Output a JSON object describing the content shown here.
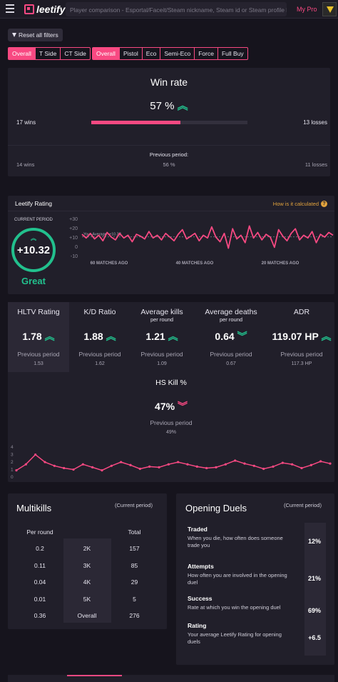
{
  "topbar": {
    "logo_text": "leetify",
    "search_placeholder": "Player comparison - Esportal/Faceit/Steam nickname, Steam id or Steam profile link",
    "my_pro": "My Pro"
  },
  "filters": {
    "reset_label": "Reset all filters",
    "side_tabs": [
      "Overall",
      "T Side",
      "CT Side"
    ],
    "round_tabs": [
      "Overall",
      "Pistol",
      "Eco",
      "Semi-Eco",
      "Force",
      "Full Buy"
    ],
    "side_selected": "Overall",
    "round_selected": "Overall"
  },
  "winrate": {
    "title": "Win rate",
    "value": "57 %",
    "wins": "17 wins",
    "losses": "13 losses",
    "fill_fraction": 0.57,
    "previous_label": "Previous period:",
    "prev_wins": "14 wins",
    "prev_value": "56 %",
    "prev_losses": "11 losses"
  },
  "rating": {
    "title": "Leetify Rating",
    "how_calc": "How is it calculated",
    "current_period": "CURRENT PERIOD",
    "value": "+10.32",
    "verdict": "Great",
    "avg_label": "Your Average: +10.32",
    "y_ticks": [
      "+30",
      "+20",
      "+10",
      "0",
      "-10"
    ],
    "x_labels": [
      "60 MATCHES AGO",
      "40 MATCHES AGO",
      "20 MATCHES AGO"
    ]
  },
  "stats": [
    {
      "label": "HLTV Rating",
      "sub": "",
      "value": "1.78",
      "dir": "up",
      "prev_label": "Previous period",
      "prev": "1.53"
    },
    {
      "label": "K/D Ratio",
      "sub": "",
      "value": "1.88",
      "dir": "up",
      "prev_label": "Previous period",
      "prev": "1.62"
    },
    {
      "label": "Average kills",
      "sub": "per round",
      "value": "1.21",
      "dir": "up",
      "prev_label": "Previous period",
      "prev": "1.09"
    },
    {
      "label": "Average deaths",
      "sub": "per round",
      "value": "0.64",
      "dir": "down-good",
      "prev_label": "Previous period",
      "prev": "0.67"
    },
    {
      "label": "ADR",
      "sub": "",
      "value": "119.07 HP",
      "dir": "up",
      "prev_label": "Previous period",
      "prev": "117.3 HP"
    }
  ],
  "hs": {
    "label": "HS Kill %",
    "value": "47%",
    "prev_label": "Previous period",
    "prev": "49%",
    "y_ticks": [
      "4",
      "3",
      "2",
      "1",
      "0"
    ]
  },
  "multikills": {
    "title": "Multikills",
    "period": "(Current period)",
    "col_per_round": "Per round",
    "col_total": "Total",
    "rows": [
      {
        "per_round": "0.2",
        "kind": "2K",
        "total": "157"
      },
      {
        "per_round": "0.11",
        "kind": "3K",
        "total": "85"
      },
      {
        "per_round": "0.04",
        "kind": "4K",
        "total": "29"
      },
      {
        "per_round": "0.01",
        "kind": "5K",
        "total": "5"
      },
      {
        "per_round": "0.36",
        "kind": "Overall",
        "total": "276"
      }
    ]
  },
  "opening": {
    "title": "Opening Duels",
    "period": "(Current period)",
    "rows": [
      {
        "title": "Traded",
        "desc": "When you die, how often does someone trade you",
        "value": "12%"
      },
      {
        "title": "Attempts",
        "desc": "How often you are involved in the opening duel",
        "value": "21%"
      },
      {
        "title": "Success",
        "desc": "Rate at which you win the opening duel",
        "value": "69%"
      },
      {
        "title": "Rating",
        "desc": "Your average Leetify Rating for opening duels",
        "value": "+6.5"
      }
    ]
  },
  "colors": {
    "accent": "#f84982",
    "good": "#22c08d",
    "panel": "#211f2a"
  }
}
